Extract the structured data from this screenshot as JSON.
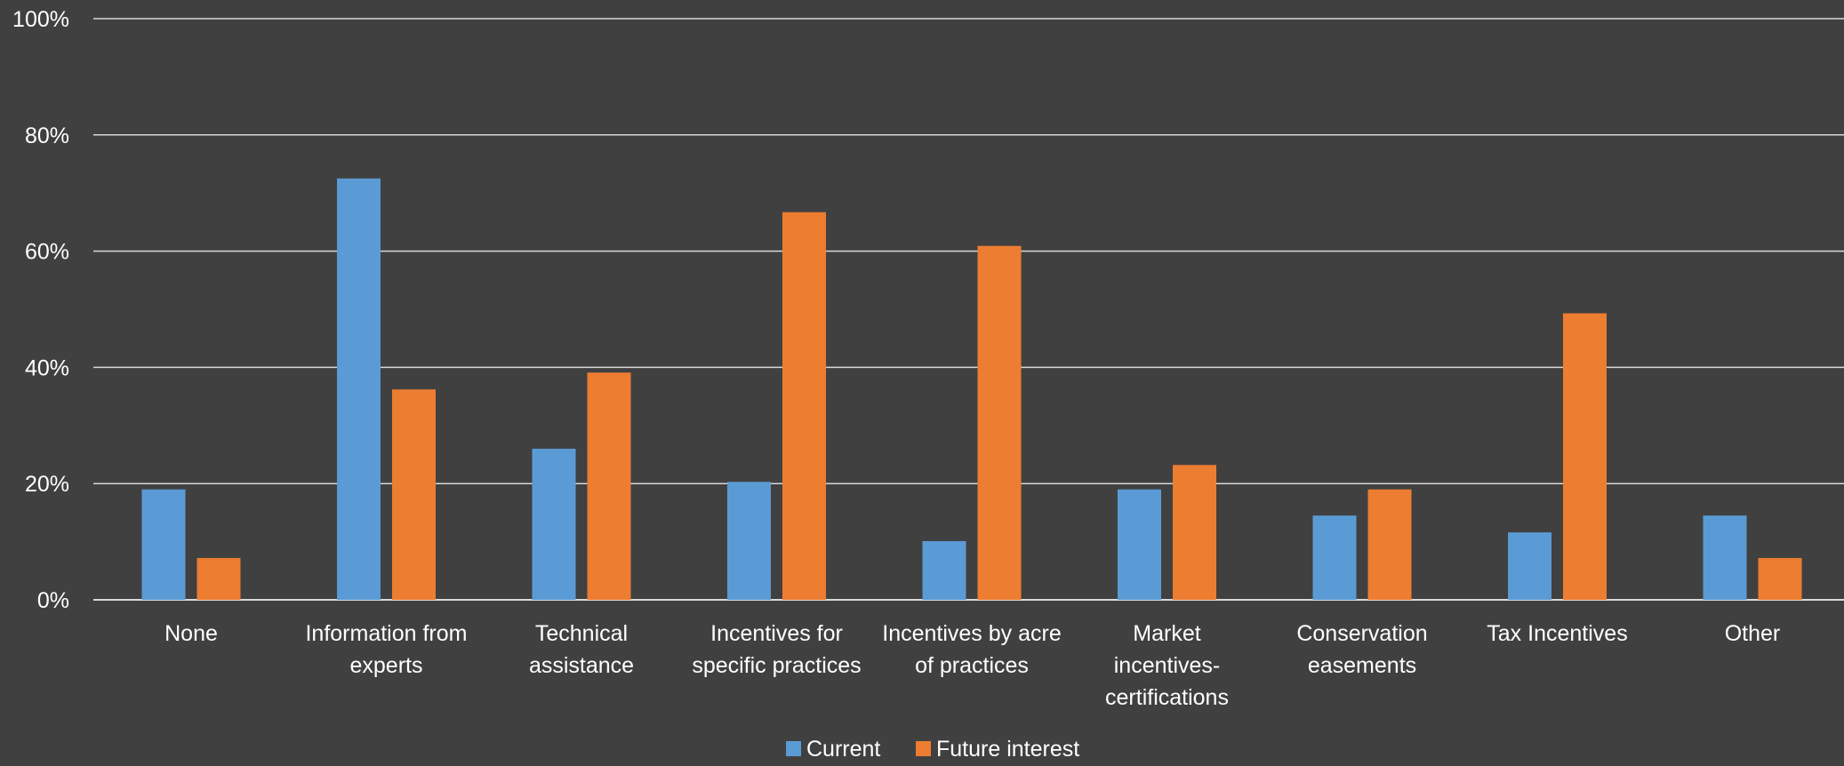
{
  "chart_data": {
    "type": "bar",
    "categories": [
      "None",
      "Information from experts",
      "Technical assistance",
      "Incentives for specific practices",
      "Incentives by acre of practices",
      "Market incentives-certifications",
      "Conservation easements",
      "Tax Incentives",
      "Other"
    ],
    "category_lines": [
      [
        "None"
      ],
      [
        "Information from",
        "experts"
      ],
      [
        "Technical",
        "assistance"
      ],
      [
        "Incentives for",
        "specific practices"
      ],
      [
        "Incentives by acre",
        "of practices"
      ],
      [
        "Market",
        "incentives-",
        "certifications"
      ],
      [
        "Conservation",
        "easements"
      ],
      [
        "Tax Incentives"
      ],
      [
        "Other"
      ]
    ],
    "series": [
      {
        "name": "Current",
        "color": "#5B9BD5",
        "values": [
          19,
          72.5,
          26,
          20.3,
          10.1,
          19,
          14.5,
          11.6,
          14.5
        ]
      },
      {
        "name": "Future interest",
        "color": "#ED7D31",
        "values": [
          7.2,
          36.2,
          39.1,
          66.7,
          60.9,
          23.2,
          19,
          49.3,
          7.2
        ]
      }
    ],
    "ylim": [
      0,
      100
    ],
    "yticks": [
      "0%",
      "20%",
      "40%",
      "60%",
      "80%",
      "100%"
    ],
    "grid": true,
    "legend_position": "bottom",
    "title": "",
    "xlabel": "",
    "ylabel": ""
  }
}
